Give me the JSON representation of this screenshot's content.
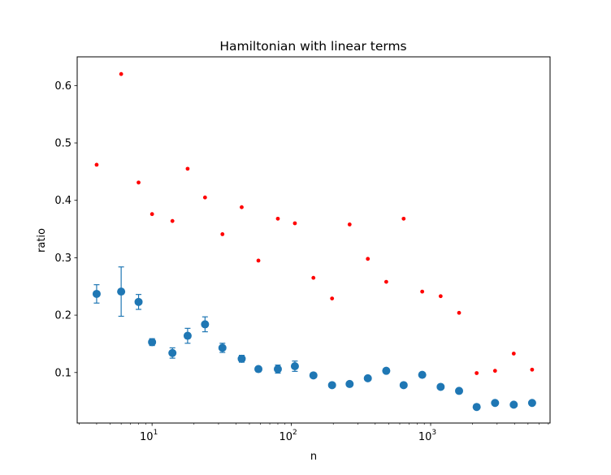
{
  "chart_data": {
    "type": "scatter",
    "title": "Hamiltonian with linear terms",
    "xlabel": "n",
    "ylabel": "ratio",
    "xscale": "log",
    "xlim": [
      2.9,
      7200
    ],
    "ylim": [
      0.012,
      0.65
    ],
    "grid": false,
    "x_ticks": [
      {
        "value": 10,
        "base": "10",
        "exp": "1"
      },
      {
        "value": 100,
        "base": "10",
        "exp": "2"
      },
      {
        "value": 1000,
        "base": "10",
        "exp": "3"
      }
    ],
    "y_ticks": [
      {
        "value": 0.1,
        "label": "0.1"
      },
      {
        "value": 0.2,
        "label": "0.2"
      },
      {
        "value": 0.3,
        "label": "0.3"
      },
      {
        "value": 0.4,
        "label": "0.4"
      },
      {
        "value": 0.5,
        "label": "0.5"
      },
      {
        "value": 0.6,
        "label": "0.6"
      }
    ],
    "series": [
      {
        "color": "#1f77b4",
        "marker": "circle-errorbar",
        "x": [
          4,
          6,
          8,
          10,
          14,
          18,
          24,
          32,
          44,
          58,
          80,
          106,
          144,
          196,
          262,
          354,
          480,
          640,
          870,
          1180,
          1600,
          2140,
          2900,
          3950,
          5350
        ],
        "y": [
          0.237,
          0.241,
          0.223,
          0.153,
          0.134,
          0.164,
          0.184,
          0.143,
          0.124,
          0.106,
          0.106,
          0.111,
          0.095,
          0.078,
          0.08,
          0.09,
          0.103,
          0.078,
          0.096,
          0.075,
          0.068,
          0.04,
          0.047,
          0.044,
          0.047
        ],
        "err": [
          0.016,
          0.043,
          0.013,
          0.006,
          0.009,
          0.013,
          0.013,
          0.008,
          0.006,
          0.003,
          0.007,
          0.009,
          0.004,
          0.003,
          0.004,
          0.003,
          0.004,
          0.003,
          0.003,
          0.003,
          0.004,
          0.002,
          0.003,
          0.002,
          0.002
        ]
      },
      {
        "color": "#ff0000",
        "marker": "small-dot",
        "x": [
          4,
          6,
          8,
          10,
          14,
          18,
          24,
          32,
          44,
          58,
          80,
          106,
          144,
          196,
          262,
          354,
          480,
          640,
          870,
          1180,
          1600,
          2140,
          2900,
          3950,
          5350
        ],
        "y": [
          0.462,
          0.62,
          0.431,
          0.376,
          0.364,
          0.455,
          0.405,
          0.341,
          0.388,
          0.295,
          0.368,
          0.36,
          0.265,
          0.229,
          0.358,
          0.298,
          0.258,
          0.368,
          0.241,
          0.233,
          0.204,
          0.099,
          0.103,
          0.133,
          0.105
        ]
      }
    ]
  }
}
